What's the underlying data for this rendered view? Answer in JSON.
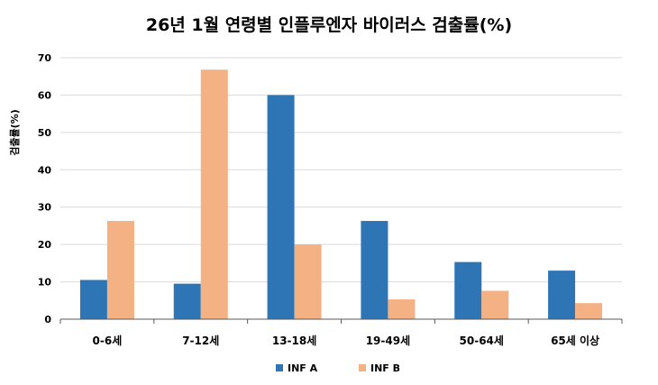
{
  "chart_data": {
    "type": "bar",
    "title": "26년 1월 연령별 인플루엔자 바이러스 검출률(%)",
    "xlabel": "",
    "ylabel": "검출률(%)",
    "ylim": [
      0,
      70
    ],
    "yticks": [
      0,
      10,
      20,
      30,
      40,
      50,
      60,
      70
    ],
    "grid": true,
    "legend": "bottom",
    "categories": [
      "0-6세",
      "7-12세",
      "13-18세",
      "19-49세",
      "50-64세",
      "65세 이상"
    ],
    "series": [
      {
        "name": "INF A",
        "color": "#2E75B6",
        "values": [
          10.5,
          9.5,
          60,
          26.3,
          15.3,
          13
        ]
      },
      {
        "name": "INF B",
        "color": "#F4B183",
        "values": [
          26.3,
          66.8,
          20,
          5.3,
          7.6,
          4.3
        ]
      }
    ]
  }
}
